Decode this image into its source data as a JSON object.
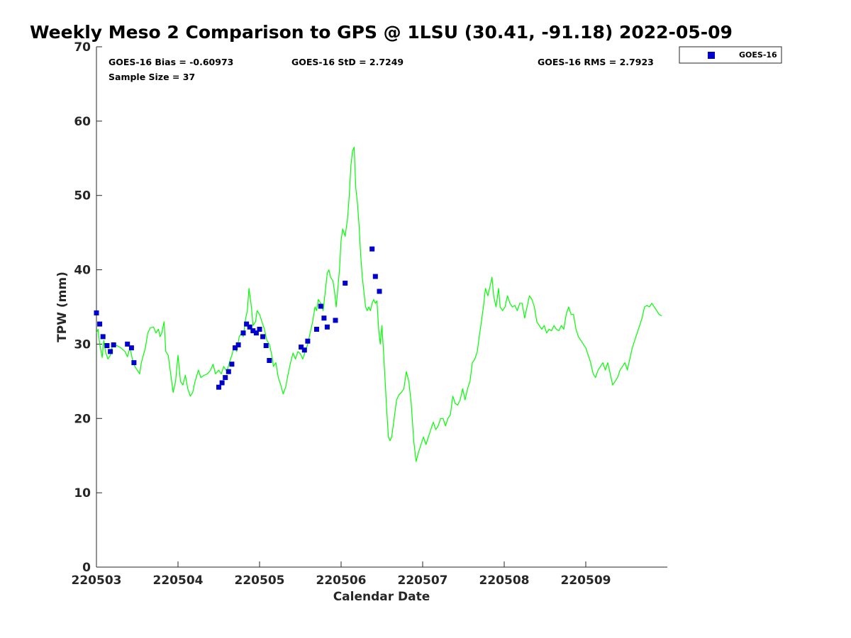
{
  "chart_data": {
    "type": "scatter",
    "title": "Weekly Meso 2 Comparison to GPS @ 1LSU (30.41, -91.18) 2022-05-09",
    "xlabel": "Calendar Date",
    "ylabel": "TPW (mm)",
    "xlim": [
      0,
      7
    ],
    "ylim": [
      0,
      70
    ],
    "x_ticks": [
      0,
      1,
      2,
      3,
      4,
      5,
      6
    ],
    "x_tick_labels": [
      "220503",
      "220504",
      "220505",
      "220506",
      "220507",
      "220508",
      "220509"
    ],
    "y_ticks": [
      0,
      10,
      20,
      30,
      40,
      50,
      60,
      70
    ],
    "y_tick_labels": [
      "0",
      "10",
      "20",
      "30",
      "40",
      "50",
      "60",
      "70"
    ],
    "grid": false,
    "legend_position": "top-right outside",
    "stats": {
      "bias": "GOES-16 Bias = -0.60973",
      "std": "GOES-16 StD = 2.7249",
      "rms": "GOES-16 RMS = 2.7923",
      "sample": "Sample Size = 37"
    },
    "series": [
      {
        "kind": "line",
        "color": "#00ff00",
        "points": [
          [
            0.0,
            31.5
          ],
          [
            0.02,
            32
          ],
          [
            0.04,
            30
          ],
          [
            0.07,
            28.2
          ],
          [
            0.09,
            30.5
          ],
          [
            0.11,
            29
          ],
          [
            0.14,
            28
          ],
          [
            0.17,
            28.5
          ],
          [
            0.2,
            30
          ],
          [
            0.25,
            29.8
          ],
          [
            0.3,
            29.5
          ],
          [
            0.35,
            29
          ],
          [
            0.38,
            28.3
          ],
          [
            0.41,
            29.5
          ],
          [
            0.44,
            28
          ],
          [
            0.47,
            27
          ],
          [
            0.5,
            26.5
          ],
          [
            0.53,
            26
          ],
          [
            0.55,
            27.5
          ],
          [
            0.6,
            29.5
          ],
          [
            0.63,
            31.5
          ],
          [
            0.66,
            32.2
          ],
          [
            0.7,
            32.3
          ],
          [
            0.73,
            31.5
          ],
          [
            0.76,
            32
          ],
          [
            0.78,
            31
          ],
          [
            0.8,
            31.5
          ],
          [
            0.83,
            33
          ],
          [
            0.85,
            29
          ],
          [
            0.88,
            28.5
          ],
          [
            0.91,
            26
          ],
          [
            0.94,
            23.5
          ],
          [
            0.97,
            25
          ],
          [
            1.0,
            28.5
          ],
          [
            1.03,
            25
          ],
          [
            1.06,
            24.5
          ],
          [
            1.09,
            25.8
          ],
          [
            1.12,
            24
          ],
          [
            1.15,
            23
          ],
          [
            1.18,
            23.5
          ],
          [
            1.21,
            25
          ],
          [
            1.25,
            26.5
          ],
          [
            1.28,
            25.5
          ],
          [
            1.32,
            25.8
          ],
          [
            1.36,
            26
          ],
          [
            1.4,
            26.5
          ],
          [
            1.43,
            27.3
          ],
          [
            1.46,
            26
          ],
          [
            1.5,
            26.5
          ],
          [
            1.53,
            26
          ],
          [
            1.56,
            27
          ],
          [
            1.6,
            26.3
          ],
          [
            1.63,
            27.5
          ],
          [
            1.66,
            28.5
          ],
          [
            1.69,
            29.8
          ],
          [
            1.72,
            29
          ],
          [
            1.75,
            31
          ],
          [
            1.78,
            31.5
          ],
          [
            1.8,
            31
          ],
          [
            1.83,
            33.5
          ],
          [
            1.85,
            34.5
          ],
          [
            1.87,
            37.5
          ],
          [
            1.9,
            35
          ],
          [
            1.92,
            32.5
          ],
          [
            1.95,
            33
          ],
          [
            1.97,
            34.5
          ],
          [
            2.0,
            34
          ],
          [
            2.03,
            33
          ],
          [
            2.06,
            32
          ],
          [
            2.09,
            30.5
          ],
          [
            2.12,
            30
          ],
          [
            2.15,
            28.5
          ],
          [
            2.17,
            27
          ],
          [
            2.2,
            27.5
          ],
          [
            2.23,
            25.5
          ],
          [
            2.26,
            24.5
          ],
          [
            2.29,
            23.3
          ],
          [
            2.32,
            24.2
          ],
          [
            2.35,
            26
          ],
          [
            2.38,
            27.5
          ],
          [
            2.41,
            28.8
          ],
          [
            2.44,
            28
          ],
          [
            2.47,
            29
          ],
          [
            2.5,
            28.7
          ],
          [
            2.53,
            28
          ],
          [
            2.56,
            29
          ],
          [
            2.59,
            30
          ],
          [
            2.62,
            31.5
          ],
          [
            2.65,
            33
          ],
          [
            2.68,
            35
          ],
          [
            2.7,
            34.5
          ],
          [
            2.72,
            36
          ],
          [
            2.75,
            35.5
          ],
          [
            2.78,
            34.5
          ],
          [
            2.81,
            37.5
          ],
          [
            2.83,
            39.5
          ],
          [
            2.85,
            40
          ],
          [
            2.87,
            39
          ],
          [
            2.9,
            38.5
          ],
          [
            2.92,
            37
          ],
          [
            2.94,
            35
          ],
          [
            2.96,
            37.5
          ],
          [
            2.98,
            40
          ],
          [
            3.0,
            44
          ],
          [
            3.02,
            45.5
          ],
          [
            3.05,
            44.5
          ],
          [
            3.08,
            47
          ],
          [
            3.1,
            50
          ],
          [
            3.12,
            54
          ],
          [
            3.14,
            56
          ],
          [
            3.16,
            56.5
          ],
          [
            3.18,
            51
          ],
          [
            3.2,
            49
          ],
          [
            3.22,
            46
          ],
          [
            3.24,
            42
          ],
          [
            3.26,
            39
          ],
          [
            3.28,
            37
          ],
          [
            3.3,
            35
          ],
          [
            3.32,
            34.5
          ],
          [
            3.34,
            35
          ],
          [
            3.36,
            34.5
          ],
          [
            3.38,
            35.5
          ],
          [
            3.4,
            36
          ],
          [
            3.42,
            35.5
          ],
          [
            3.44,
            35.8
          ],
          [
            3.46,
            32
          ],
          [
            3.48,
            30
          ],
          [
            3.5,
            32.5
          ],
          [
            3.52,
            29
          ],
          [
            3.54,
            25
          ],
          [
            3.56,
            21
          ],
          [
            3.58,
            17.5
          ],
          [
            3.6,
            17
          ],
          [
            3.62,
            17.5
          ],
          [
            3.65,
            20
          ],
          [
            3.68,
            22.5
          ],
          [
            3.71,
            23.2
          ],
          [
            3.74,
            23.5
          ],
          [
            3.77,
            24
          ],
          [
            3.8,
            26.3
          ],
          [
            3.83,
            25
          ],
          [
            3.86,
            22
          ],
          [
            3.89,
            17
          ],
          [
            3.92,
            14.2
          ],
          [
            3.95,
            15.5
          ],
          [
            3.98,
            16.5
          ],
          [
            4.01,
            17.5
          ],
          [
            4.04,
            16.5
          ],
          [
            4.07,
            17.5
          ],
          [
            4.1,
            18.5
          ],
          [
            4.13,
            19.5
          ],
          [
            4.16,
            18.5
          ],
          [
            4.19,
            19
          ],
          [
            4.22,
            20
          ],
          [
            4.25,
            20
          ],
          [
            4.28,
            19
          ],
          [
            4.31,
            20
          ],
          [
            4.34,
            20.5
          ],
          [
            4.37,
            23
          ],
          [
            4.4,
            22
          ],
          [
            4.43,
            21.8
          ],
          [
            4.46,
            22.5
          ],
          [
            4.49,
            24
          ],
          [
            4.52,
            22.5
          ],
          [
            4.55,
            24
          ],
          [
            4.58,
            25
          ],
          [
            4.61,
            27.5
          ],
          [
            4.64,
            28
          ],
          [
            4.67,
            29
          ],
          [
            4.7,
            31.5
          ],
          [
            4.72,
            33
          ],
          [
            4.75,
            35.5
          ],
          [
            4.77,
            37.5
          ],
          [
            4.8,
            36.5
          ],
          [
            4.83,
            38
          ],
          [
            4.85,
            39
          ],
          [
            4.87,
            36.5
          ],
          [
            4.9,
            35
          ],
          [
            4.93,
            37.5
          ],
          [
            4.95,
            35
          ],
          [
            4.98,
            34.5
          ],
          [
            5.01,
            35
          ],
          [
            5.04,
            36.5
          ],
          [
            5.07,
            35.5
          ],
          [
            5.1,
            35
          ],
          [
            5.13,
            35.2
          ],
          [
            5.16,
            34.5
          ],
          [
            5.19,
            35.5
          ],
          [
            5.22,
            35.5
          ],
          [
            5.25,
            33.5
          ],
          [
            5.28,
            35
          ],
          [
            5.31,
            36.5
          ],
          [
            5.34,
            36
          ],
          [
            5.37,
            35
          ],
          [
            5.4,
            33
          ],
          [
            5.43,
            32.5
          ],
          [
            5.46,
            32
          ],
          [
            5.49,
            32.5
          ],
          [
            5.52,
            31.5
          ],
          [
            5.55,
            32
          ],
          [
            5.58,
            31.8
          ],
          [
            5.61,
            32.5
          ],
          [
            5.64,
            32
          ],
          [
            5.67,
            31.8
          ],
          [
            5.7,
            32.5
          ],
          [
            5.73,
            32
          ],
          [
            5.76,
            34
          ],
          [
            5.79,
            35
          ],
          [
            5.82,
            34
          ],
          [
            5.85,
            34
          ],
          [
            5.88,
            32
          ],
          [
            5.91,
            31
          ],
          [
            5.94,
            30.5
          ],
          [
            5.97,
            30
          ],
          [
            6.0,
            29.5
          ],
          [
            6.03,
            28.5
          ],
          [
            6.06,
            27.5
          ],
          [
            6.09,
            26
          ],
          [
            6.12,
            25.5
          ],
          [
            6.15,
            26.5
          ],
          [
            6.18,
            27
          ],
          [
            6.21,
            27.5
          ],
          [
            6.24,
            26.5
          ],
          [
            6.27,
            27.5
          ],
          [
            6.3,
            26
          ],
          [
            6.33,
            24.5
          ],
          [
            6.36,
            25
          ],
          [
            6.39,
            25.5
          ],
          [
            6.42,
            26.5
          ],
          [
            6.45,
            27
          ],
          [
            6.48,
            27.5
          ],
          [
            6.51,
            26.5
          ],
          [
            6.54,
            28
          ],
          [
            6.57,
            29.5
          ],
          [
            6.6,
            30.5
          ],
          [
            6.63,
            31.5
          ],
          [
            6.66,
            32.5
          ],
          [
            6.69,
            33.5
          ],
          [
            6.72,
            35
          ],
          [
            6.75,
            35.2
          ],
          [
            6.78,
            35
          ],
          [
            6.81,
            35.5
          ],
          [
            6.84,
            35
          ],
          [
            6.87,
            34.5
          ],
          [
            6.9,
            34
          ],
          [
            6.93,
            33.8
          ]
        ]
      },
      {
        "kind": "markers",
        "name": "GOES-16",
        "color": "#0000cc",
        "points": [
          [
            0.0,
            34.2
          ],
          [
            0.04,
            32.7
          ],
          [
            0.08,
            31
          ],
          [
            0.13,
            29.8
          ],
          [
            0.17,
            29
          ],
          [
            0.21,
            29.9
          ],
          [
            0.38,
            30
          ],
          [
            0.43,
            29.5
          ],
          [
            0.46,
            27.5
          ],
          [
            1.5,
            24.2
          ],
          [
            1.54,
            24.8
          ],
          [
            1.58,
            25.5
          ],
          [
            1.62,
            26.3
          ],
          [
            1.66,
            27.3
          ],
          [
            1.7,
            29.5
          ],
          [
            1.74,
            29.9
          ],
          [
            1.8,
            31.5
          ],
          [
            1.84,
            32.7
          ],
          [
            1.88,
            32.3
          ],
          [
            1.92,
            31.8
          ],
          [
            1.96,
            31.5
          ],
          [
            2.0,
            32
          ],
          [
            2.04,
            31
          ],
          [
            2.08,
            29.8
          ],
          [
            2.12,
            27.8
          ],
          [
            2.51,
            29.6
          ],
          [
            2.55,
            29.2
          ],
          [
            2.59,
            30.4
          ],
          [
            2.7,
            32
          ],
          [
            2.75,
            35.1
          ],
          [
            2.79,
            33.5
          ],
          [
            2.83,
            32.3
          ],
          [
            2.93,
            33.2
          ],
          [
            3.05,
            38.2
          ],
          [
            3.38,
            42.8
          ],
          [
            3.42,
            39.1
          ],
          [
            3.47,
            37.1
          ]
        ]
      }
    ]
  }
}
